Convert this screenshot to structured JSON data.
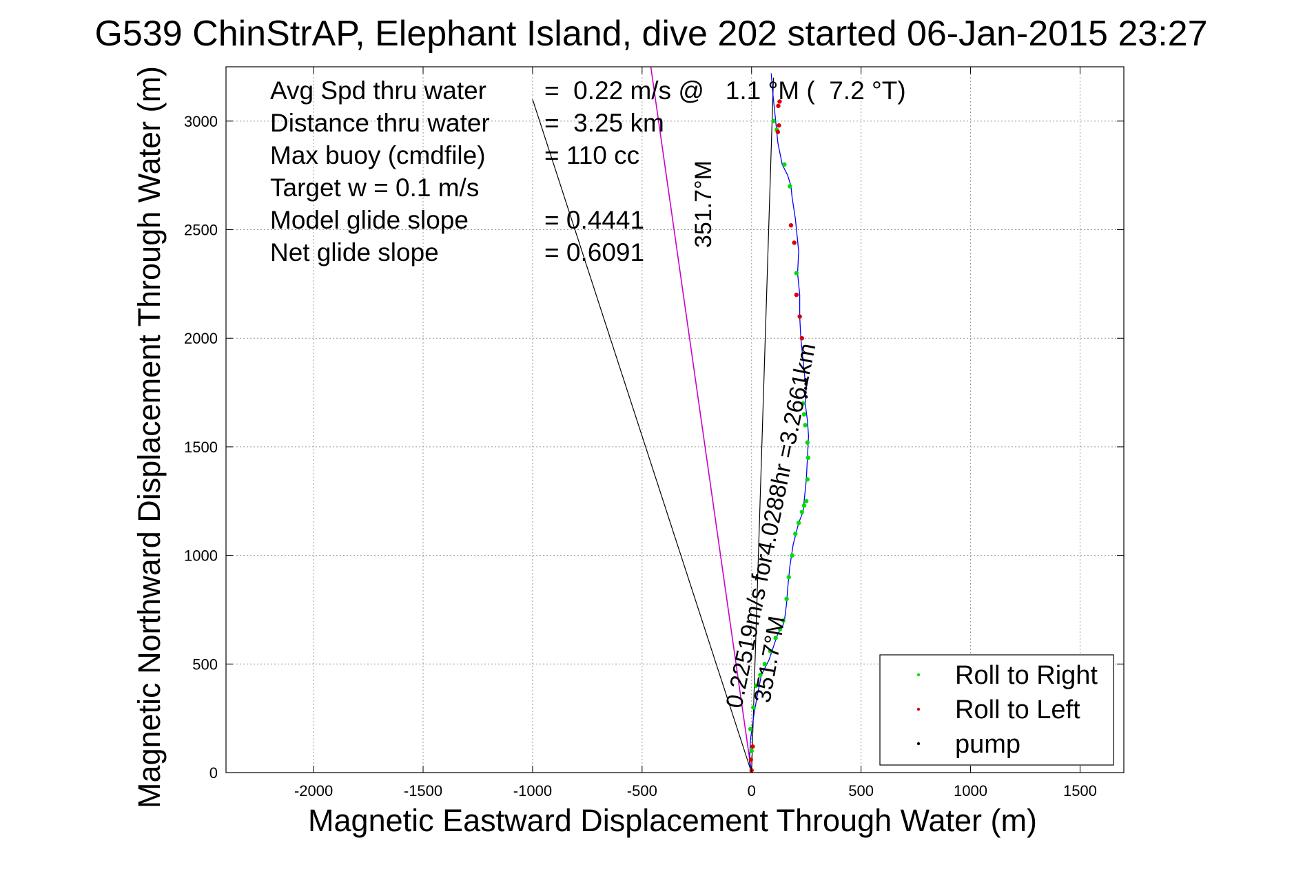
{
  "chart_data": {
    "type": "line",
    "title": "G539 ChinStrAP, Elephant Island, dive 202 started 06-Jan-2015 23:27",
    "xlabel": "Magnetic Eastward Displacement Through Water (m)",
    "ylabel": "Magnetic Northward Displacement Through Water (m)",
    "xlim": [
      -2400,
      1700
    ],
    "ylim": [
      0,
      3250
    ],
    "xticks": [
      -2000,
      -1500,
      -1000,
      -500,
      0,
      500,
      1000,
      1500
    ],
    "yticks": [
      0,
      500,
      1000,
      1500,
      2000,
      2500,
      3000
    ],
    "grid": true,
    "legend_position": "bottom-right",
    "legend": [
      {
        "label": "Roll to Right",
        "color": "#00dd00"
      },
      {
        "label": "Roll to Left",
        "color": "#dd0000"
      },
      {
        "label": "pump",
        "color": "#000000"
      }
    ],
    "stats": [
      {
        "label": "Avg Spd thru water",
        "value": "=  0.22 m/s @   1.1 °M (  7.2 °T)"
      },
      {
        "label": "Distance thru water",
        "value": "=  3.25 km"
      },
      {
        "label": "Max buoy (cmdfile)",
        "value": "= 110 cc"
      },
      {
        "label": "Target w    = 0.1 m/s",
        "value": ""
      },
      {
        "label": "Model glide slope",
        "value": "= 0.4441"
      },
      {
        "label": "Net glide slope",
        "value": "= 0.6091"
      }
    ],
    "annotations": {
      "current_heading_label": "351.7°M",
      "current_speed_label": "0.22519m/s for4.0288hr =3.2661km",
      "current_near_label": "351.7°M"
    },
    "current_vector": {
      "x": [
        0,
        -460
      ],
      "y": [
        0,
        3250
      ],
      "color": "#cc00cc"
    },
    "reference_lines": [
      {
        "x": [
          0,
          -1000
        ],
        "y": [
          0,
          3100
        ],
        "color": "#000000"
      },
      {
        "x": [
          0,
          100
        ],
        "y": [
          0,
          3200
        ],
        "color": "#000000"
      }
    ],
    "series": [
      {
        "name": "track",
        "color": "#0000ff",
        "x": [
          0,
          -10,
          -5,
          8,
          25,
          45,
          80,
          100,
          120,
          140,
          150,
          160,
          165,
          175,
          190,
          215,
          235,
          240,
          250,
          255,
          260,
          255,
          245,
          250,
          245,
          235,
          225,
          220,
          220,
          210,
          215,
          205,
          200,
          185,
          180,
          165,
          140,
          120,
          115,
          110,
          105,
          100,
          95,
          90
        ],
        "y": [
          0,
          50,
          150,
          250,
          350,
          450,
          520,
          580,
          640,
          670,
          700,
          780,
          850,
          950,
          1050,
          1150,
          1200,
          1250,
          1350,
          1450,
          1550,
          1620,
          1700,
          1780,
          1800,
          1900,
          2000,
          2100,
          2200,
          2300,
          2400,
          2500,
          2550,
          2650,
          2700,
          2750,
          2800,
          2900,
          2950,
          3000,
          3050,
          3100,
          3150,
          3220
        ]
      }
    ],
    "roll_right_points": {
      "x": [
        8,
        20,
        40,
        60,
        85,
        110,
        130,
        145,
        160,
        170,
        185,
        200,
        215,
        230,
        240,
        250,
        255,
        258,
        255,
        245,
        240,
        235,
        205,
        175,
        150,
        115,
        100,
        0,
        -5
      ],
      "y": [
        300,
        400,
        450,
        500,
        560,
        620,
        660,
        700,
        800,
        900,
        1000,
        1100,
        1150,
        1200,
        1230,
        1250,
        1350,
        1450,
        1520,
        1600,
        1650,
        1700,
        2300,
        2700,
        2800,
        2960,
        3000,
        100,
        200
      ]
    },
    "roll_left_points": {
      "x": [
        0,
        -3,
        5,
        120,
        125,
        180,
        195,
        205,
        220,
        230,
        122,
        128
      ],
      "y": [
        10,
        60,
        120,
        2950,
        2980,
        2520,
        2440,
        2200,
        2100,
        2000,
        3070,
        3090
      ]
    },
    "pump_points": {
      "x": [
        245,
        247,
        248,
        246,
        250
      ],
      "y": [
        1750,
        1770,
        1790,
        1810,
        1730
      ]
    }
  }
}
